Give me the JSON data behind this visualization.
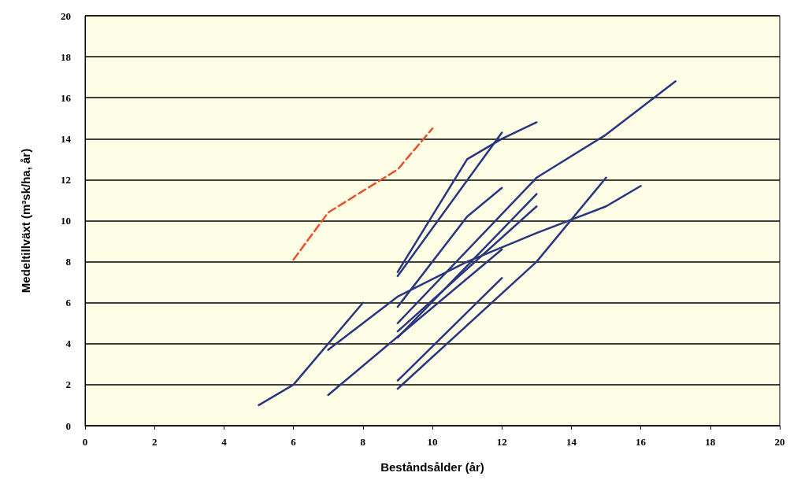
{
  "chart_data": {
    "type": "line",
    "xlabel": "Beståndsålder (år)",
    "ylabel": "Medeltillväxt (m³sk/ha, år)",
    "xlim": [
      0,
      20
    ],
    "ylim": [
      0,
      20
    ],
    "xticks": [
      0,
      2,
      4,
      6,
      8,
      10,
      12,
      14,
      16,
      18,
      20
    ],
    "yticks": [
      0,
      2,
      4,
      6,
      8,
      10,
      12,
      14,
      16,
      18,
      20
    ],
    "grid": "y",
    "marker": "none",
    "series": [
      {
        "color": "#e8502a",
        "line_style": "dashed",
        "x": [
          6,
          7,
          9,
          10
        ],
        "values": [
          8.1,
          10.4,
          12.5,
          14.5
        ]
      },
      {
        "color": "#2a3580",
        "x": [
          5,
          6,
          8
        ],
        "values": [
          1,
          2,
          6
        ]
      },
      {
        "color": "#2a3580",
        "x": [
          7,
          9,
          11,
          13,
          15,
          16
        ],
        "values": [
          3.7,
          6.3,
          8,
          9.4,
          10.7,
          11.7
        ]
      },
      {
        "color": "#2a3580",
        "x": [
          7,
          12
        ],
        "values": [
          1.5,
          8.6
        ]
      },
      {
        "color": "#2a3580",
        "x": [
          9,
          11,
          12,
          13
        ],
        "values": [
          7.5,
          13,
          14,
          14.8
        ]
      },
      {
        "color": "#2a3580",
        "x": [
          9,
          12
        ],
        "values": [
          7.3,
          14.3
        ]
      },
      {
        "color": "#2a3580",
        "x": [
          9,
          11,
          12
        ],
        "values": [
          5.8,
          10.2,
          11.6
        ]
      },
      {
        "color": "#2a3580",
        "x": [
          9,
          13,
          15,
          17
        ],
        "values": [
          5,
          12.1,
          14.2,
          16.8
        ]
      },
      {
        "color": "#2a3580",
        "x": [
          9,
          13
        ],
        "values": [
          4.3,
          11.3
        ]
      },
      {
        "color": "#2a3580",
        "x": [
          9,
          13
        ],
        "values": [
          4.6,
          10.7
        ]
      },
      {
        "color": "#2a3580",
        "x": [
          9,
          12
        ],
        "values": [
          2.2,
          7.2
        ]
      },
      {
        "color": "#2a3580",
        "x": [
          9,
          13,
          15
        ],
        "values": [
          1.8,
          8,
          12.1
        ]
      }
    ]
  }
}
